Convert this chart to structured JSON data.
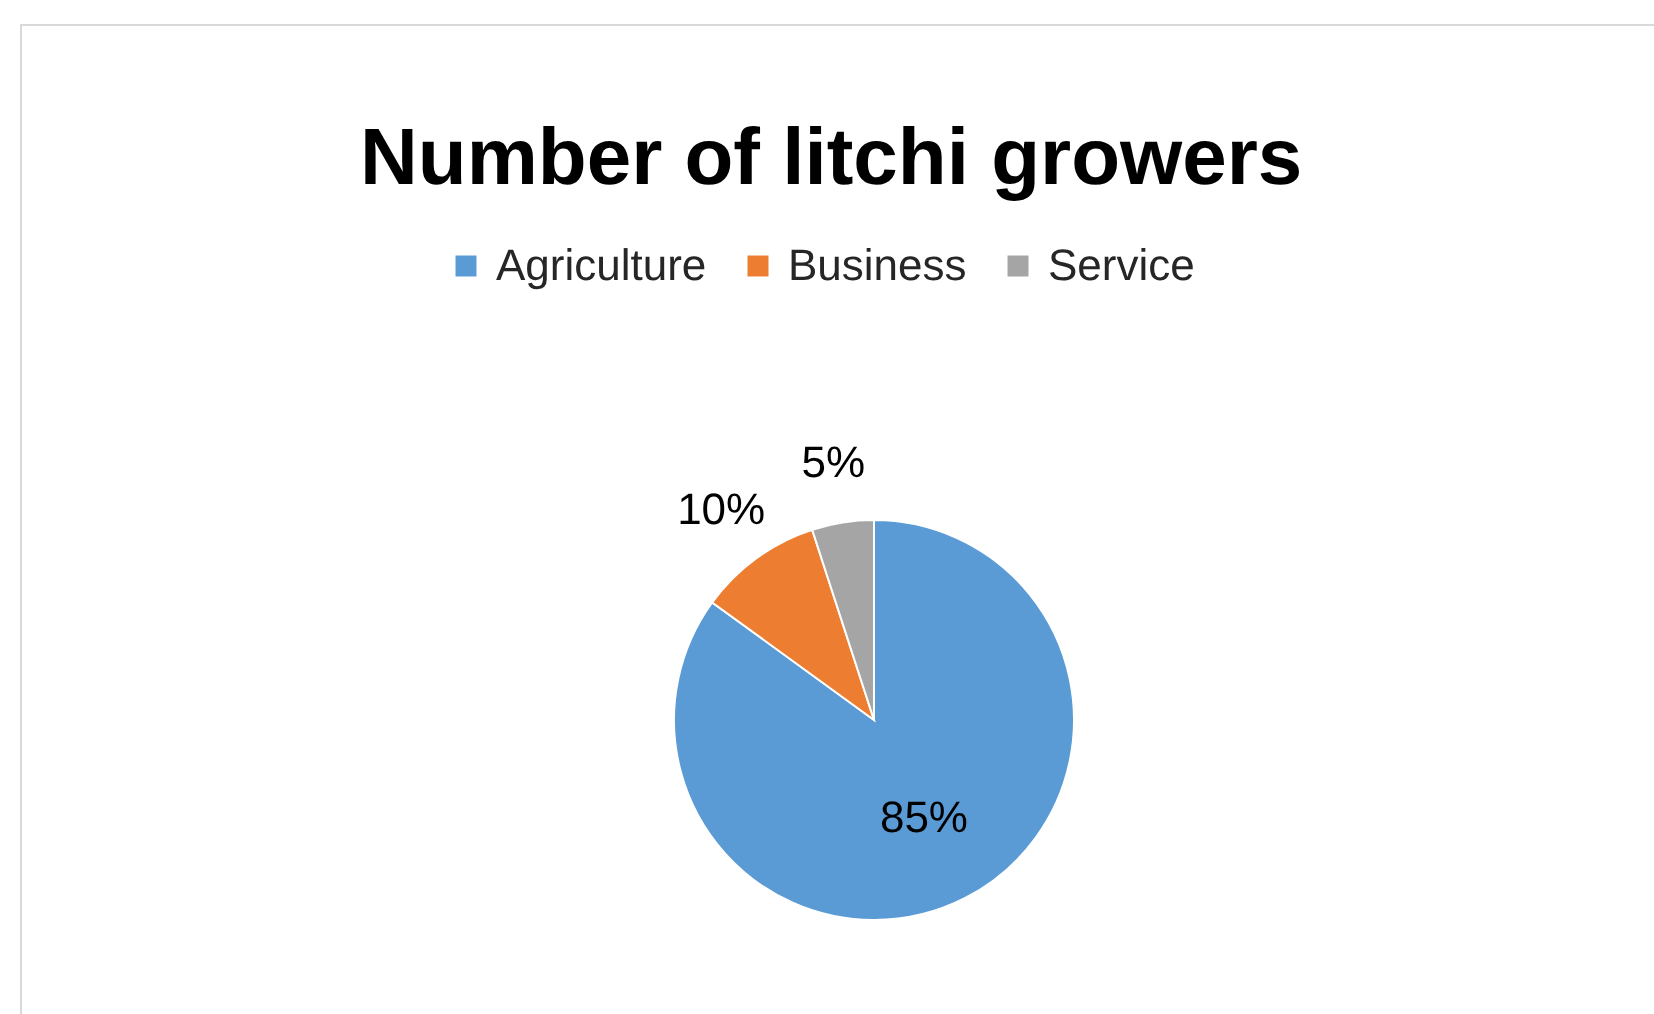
{
  "chart_data": {
    "type": "pie",
    "title": "Number of litchi growers",
    "categories": [
      "Agriculture",
      "Business",
      "Service"
    ],
    "values": [
      85,
      10,
      5
    ],
    "colors": [
      "#5b9bd5",
      "#ed7d31",
      "#a5a5a5"
    ],
    "value_labels": [
      "85%",
      "10%",
      "5%"
    ],
    "legend": "top"
  }
}
